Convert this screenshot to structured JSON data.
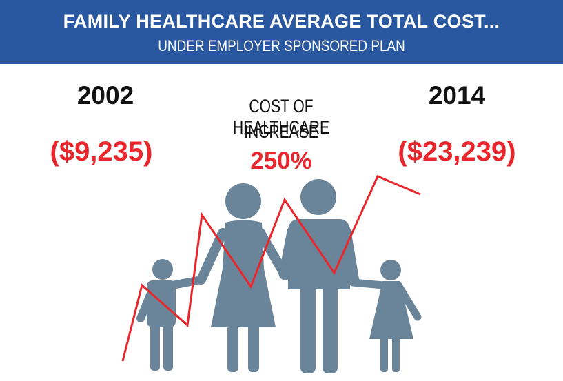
{
  "header": {
    "title": "FAMILY HEALTHCARE AVERAGE TOTAL COST...",
    "subtitle": "UNDER EMPLOYER SPONSORED PLAN"
  },
  "left": {
    "year": "2002",
    "cost": "($9,235)"
  },
  "right": {
    "year": "2014",
    "cost": "($23,239)"
  },
  "center": {
    "line1": "COST OF HEALTHCARE",
    "line2": "INCREASE",
    "percent": "250%"
  },
  "colors": {
    "banner": "#2a58a0",
    "accent_red": "#e8262b",
    "figure": "#6a8599",
    "text": "#111111"
  },
  "icons": [
    "family-icon",
    "cost-trend-line-icon"
  ]
}
